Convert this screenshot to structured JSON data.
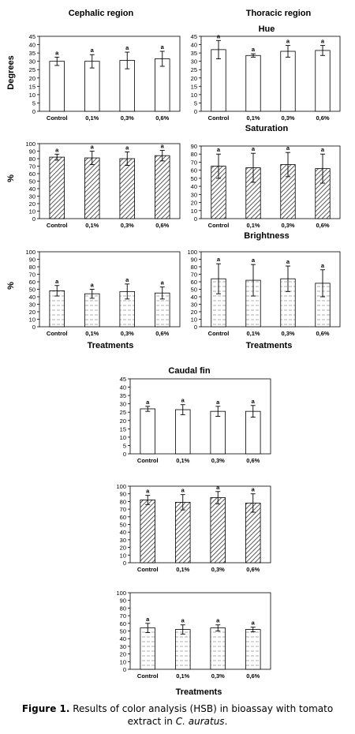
{
  "figure": {
    "headings": {
      "cephalic": "Cephalic region",
      "thoracic": "Thoracic region",
      "caudal": "Caudal fin",
      "hue": "Hue",
      "saturation": "Saturation",
      "brightness": "Brightness"
    },
    "y_labels": {
      "degrees": "Degrees",
      "percent": "%"
    },
    "x_title": "Treatments",
    "caption": {
      "label": "Figure 1.",
      "text_before": " Results of color analysis (HSB) in bioassay with tomato extract in ",
      "species": "C. auratus",
      "text_after": "."
    }
  },
  "chart_data": [
    {
      "id": "cephalic-hue",
      "type": "bar",
      "ylabel": "Degrees",
      "xlabel": "",
      "title": "",
      "categories": [
        "Control",
        "0,1%",
        "0,3%",
        "0,6%"
      ],
      "values": [
        30,
        30,
        30.5,
        31.5
      ],
      "errors": [
        2.5,
        4,
        5,
        4.5
      ],
      "letters": [
        "a",
        "a",
        "a",
        "a"
      ],
      "ylim": [
        0,
        45
      ],
      "yticks": [
        0,
        5,
        10,
        15,
        20,
        25,
        30,
        35,
        40,
        45
      ],
      "fill": "white"
    },
    {
      "id": "thoracic-hue",
      "type": "bar",
      "ylabel": "",
      "xlabel": "",
      "title": "Hue",
      "categories": [
        "Control",
        "0,1%",
        "0,3%",
        "0,6%"
      ],
      "values": [
        37,
        33.5,
        36,
        36.5
      ],
      "errors": [
        5.5,
        1,
        3.5,
        3
      ],
      "letters": [
        "a",
        "a",
        "a",
        "a"
      ],
      "ylim": [
        0,
        45
      ],
      "yticks": [
        0,
        5,
        10,
        15,
        20,
        25,
        30,
        35,
        40,
        45
      ],
      "fill": "white"
    },
    {
      "id": "cephalic-saturation",
      "type": "bar",
      "ylabel": "%",
      "xlabel": "",
      "title": "",
      "categories": [
        "Control",
        "0,1%",
        "0,3%",
        "0,6%"
      ],
      "values": [
        82,
        81,
        80,
        84
      ],
      "errors": [
        4,
        9,
        9,
        7
      ],
      "letters": [
        "a",
        "a",
        "a",
        "a"
      ],
      "ylim": [
        0,
        100
      ],
      "yticks": [
        0,
        10,
        20,
        30,
        40,
        50,
        60,
        70,
        80,
        90,
        100
      ],
      "fill": "hatch"
    },
    {
      "id": "thoracic-saturation",
      "type": "bar",
      "ylabel": "",
      "xlabel": "",
      "title": "Saturation",
      "categories": [
        "Control",
        "0,1%",
        "0,3%",
        "0,6%"
      ],
      "values": [
        65,
        63,
        67,
        62
      ],
      "errors": [
        15,
        18,
        15,
        18
      ],
      "letters": [
        "a",
        "a",
        "a",
        "a"
      ],
      "ylim": [
        0,
        90
      ],
      "yticks": [
        0,
        10,
        20,
        30,
        40,
        50,
        60,
        70,
        80,
        90
      ],
      "fill": "hatch"
    },
    {
      "id": "cephalic-brightness",
      "type": "bar",
      "ylabel": "%",
      "xlabel": "Treatments",
      "title": "",
      "categories": [
        "Control",
        "0,1%",
        "0,3%",
        "0,6%"
      ],
      "values": [
        48,
        44,
        47,
        45
      ],
      "errors": [
        7,
        6,
        10,
        8
      ],
      "letters": [
        "a",
        "a",
        "a",
        "a"
      ],
      "ylim": [
        0,
        100
      ],
      "yticks": [
        0,
        10,
        20,
        30,
        40,
        50,
        60,
        70,
        80,
        90,
        100
      ],
      "fill": "dash"
    },
    {
      "id": "thoracic-brightness",
      "type": "bar",
      "ylabel": "",
      "xlabel": "Treatments",
      "title": "Brightness",
      "categories": [
        "Control",
        "0,1%",
        "0,3%",
        "0,6%"
      ],
      "values": [
        64,
        62,
        64,
        58
      ],
      "errors": [
        20,
        21,
        17,
        18
      ],
      "letters": [
        "a",
        "a",
        "a",
        "a"
      ],
      "ylim": [
        0,
        100
      ],
      "yticks": [
        0,
        10,
        20,
        30,
        40,
        50,
        60,
        70,
        80,
        90,
        100
      ],
      "fill": "dash"
    },
    {
      "id": "caudal-hue",
      "type": "bar",
      "ylabel": "",
      "xlabel": "",
      "title": "",
      "categories": [
        "Control",
        "0,1%",
        "0,3%",
        "0,6%"
      ],
      "values": [
        27,
        26.5,
        25.5,
        25.5
      ],
      "errors": [
        1.5,
        3,
        3,
        3.5
      ],
      "letters": [
        "a",
        "a",
        "a",
        "a"
      ],
      "ylim": [
        0,
        45
      ],
      "yticks": [
        0,
        5,
        10,
        15,
        20,
        25,
        30,
        35,
        40,
        45
      ],
      "fill": "white"
    },
    {
      "id": "caudal-saturation",
      "type": "bar",
      "ylabel": "",
      "xlabel": "",
      "title": "",
      "categories": [
        "Control",
        "0,1%",
        "0,3%",
        "0,6%"
      ],
      "values": [
        82,
        79,
        85,
        78
      ],
      "errors": [
        6,
        10,
        8,
        12
      ],
      "letters": [
        "a",
        "a",
        "a",
        "a"
      ],
      "ylim": [
        0,
        100
      ],
      "yticks": [
        0,
        10,
        20,
        30,
        40,
        50,
        60,
        70,
        80,
        90,
        100
      ],
      "fill": "hatch"
    },
    {
      "id": "caudal-brightness",
      "type": "bar",
      "ylabel": "",
      "xlabel": "Treatments",
      "title": "",
      "categories": [
        "Control",
        "0,1%",
        "0,3%",
        "0,6%"
      ],
      "values": [
        54,
        52,
        54,
        52
      ],
      "errors": [
        6,
        6,
        4,
        3
      ],
      "letters": [
        "a",
        "a",
        "a",
        "a"
      ],
      "ylim": [
        0,
        100
      ],
      "yticks": [
        0,
        10,
        20,
        30,
        40,
        50,
        60,
        70,
        80,
        90,
        100
      ],
      "fill": "dash"
    }
  ]
}
